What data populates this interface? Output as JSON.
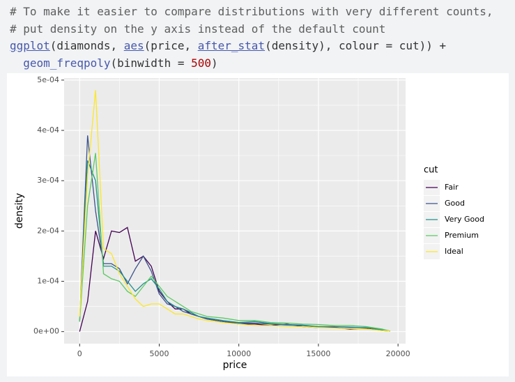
{
  "code": {
    "lines": [
      {
        "tokens": [
          {
            "text": "# To make it easier to compare distributions with very different counts,",
            "color": "#5e5e5e",
            "underline": false
          }
        ]
      },
      {
        "tokens": [
          {
            "text": "# put density on the y axis instead of the default count",
            "color": "#5e5e5e",
            "underline": false
          }
        ]
      },
      {
        "tokens": [
          {
            "text": "ggplot",
            "color": "#4758ab",
            "underline": true
          },
          {
            "text": "(diamonds, ",
            "color": "#333333",
            "underline": false
          },
          {
            "text": "aes",
            "color": "#4758ab",
            "underline": true
          },
          {
            "text": "(price, ",
            "color": "#333333",
            "underline": false
          },
          {
            "text": "after_stat",
            "color": "#4758ab",
            "underline": true
          },
          {
            "text": "(density), colour = cut)) +",
            "color": "#333333",
            "underline": false
          }
        ]
      },
      {
        "tokens": [
          {
            "text": "  geom_freqpoly",
            "color": "#4758ab",
            "underline": false
          },
          {
            "text": "(binwidth = ",
            "color": "#333333",
            "underline": false
          },
          {
            "text": "500",
            "color": "#ad0000",
            "underline": false
          },
          {
            "text": ")",
            "color": "#333333",
            "underline": false
          }
        ]
      }
    ]
  },
  "chart_data": {
    "type": "line",
    "x_label": "price",
    "y_label": "density",
    "legend_title": "cut",
    "legend": "right",
    "grid": true,
    "x": [
      0,
      500,
      1000,
      1500,
      2000,
      2500,
      3000,
      3500,
      4000,
      4500,
      5000,
      5500,
      6000,
      6500,
      7000,
      7500,
      8000,
      9000,
      10000,
      11000,
      12000,
      13000,
      14000,
      15000,
      16000,
      17000,
      18000,
      19000,
      19500
    ],
    "xlim": [
      -975,
      20475
    ],
    "xticks": [
      0,
      5000,
      10000,
      15000,
      20000
    ],
    "xminorticks": [
      2500,
      7500,
      12500,
      17500
    ],
    "ylim": [
      -2.4e-05,
      0.000504
    ],
    "yticks": [
      {
        "value": 0,
        "label": "0e+00"
      },
      {
        "value": 0.0001,
        "label": "1e-04"
      },
      {
        "value": 0.0002,
        "label": "2e-04"
      },
      {
        "value": 0.0003,
        "label": "3e-04"
      },
      {
        "value": 0.0004,
        "label": "4e-04"
      },
      {
        "value": 0.0005,
        "label": "5e-04"
      }
    ],
    "yminorticks": [
      5e-05,
      0.00015,
      0.00025,
      0.00035,
      0.00045
    ],
    "series": [
      {
        "name": "Fair",
        "color": "#440154",
        "values": [
          0,
          6e-05,
          0.0002,
          0.000145,
          0.0002,
          0.000197,
          0.000207,
          0.00014,
          0.00015,
          0.00013,
          8e-05,
          6e-05,
          4.5e-05,
          4.5e-05,
          3.5e-05,
          3e-05,
          2.5e-05,
          2e-05,
          1.5e-05,
          1.5e-05,
          1.2e-05,
          1.5e-05,
          1e-05,
          8e-06,
          8e-06,
          5e-06,
          6e-06,
          2e-06,
          1e-06
        ]
      },
      {
        "name": "Good",
        "color": "#3b528b",
        "values": [
          2e-05,
          0.00039,
          0.00024,
          0.000135,
          0.000135,
          0.000125,
          9.5e-05,
          0.000125,
          0.00015,
          0.00012,
          7.5e-05,
          5.5e-05,
          5e-05,
          4e-05,
          3.5e-05,
          3e-05,
          2.5e-05,
          2e-05,
          1.7e-05,
          1.7e-05,
          1.5e-05,
          1.3e-05,
          1.2e-05,
          1e-05,
          1e-05,
          8e-06,
          8e-06,
          4e-06,
          1e-06
        ]
      },
      {
        "name": "Very Good",
        "color": "#21908c",
        "values": [
          2e-05,
          0.00034,
          0.0003,
          0.00013,
          0.00013,
          0.00012,
          0.0001,
          8e-05,
          9.5e-05,
          0.000105,
          8.5e-05,
          6e-05,
          5e-05,
          4.5e-05,
          3.8e-05,
          3e-05,
          2.7e-05,
          2.2e-05,
          1.8e-05,
          2e-05,
          1.6e-05,
          1.4e-05,
          1.3e-05,
          1e-05,
          1e-05,
          9e-06,
          8e-06,
          3e-06,
          1e-06
        ]
      },
      {
        "name": "Premium",
        "color": "#5dc963",
        "values": [
          2e-05,
          0.00025,
          0.000355,
          0.000115,
          0.000105,
          0.0001,
          8e-05,
          7e-05,
          9e-05,
          0.00011,
          9e-05,
          7e-05,
          6e-05,
          5e-05,
          4e-05,
          3.5e-05,
          3e-05,
          2.7e-05,
          2.2e-05,
          2.2e-05,
          1.8e-05,
          1.7e-05,
          1.5e-05,
          1.4e-05,
          1.2e-05,
          1.2e-05,
          1e-05,
          5e-06,
          1e-06
        ]
      },
      {
        "name": "Ideal",
        "color": "#fde725",
        "values": [
          3e-05,
          0.00031,
          0.00048,
          0.000165,
          0.000155,
          0.000115,
          9e-05,
          6.5e-05,
          5e-05,
          5.5e-05,
          5.5e-05,
          4.5e-05,
          3.5e-05,
          3.5e-05,
          3e-05,
          2.5e-05,
          2.2e-05,
          1.8e-05,
          1.5e-05,
          1.2e-05,
          1.2e-05,
          1e-05,
          1e-05,
          8e-06,
          7e-06,
          6e-06,
          5e-06,
          2e-06,
          1e-06
        ]
      }
    ]
  }
}
